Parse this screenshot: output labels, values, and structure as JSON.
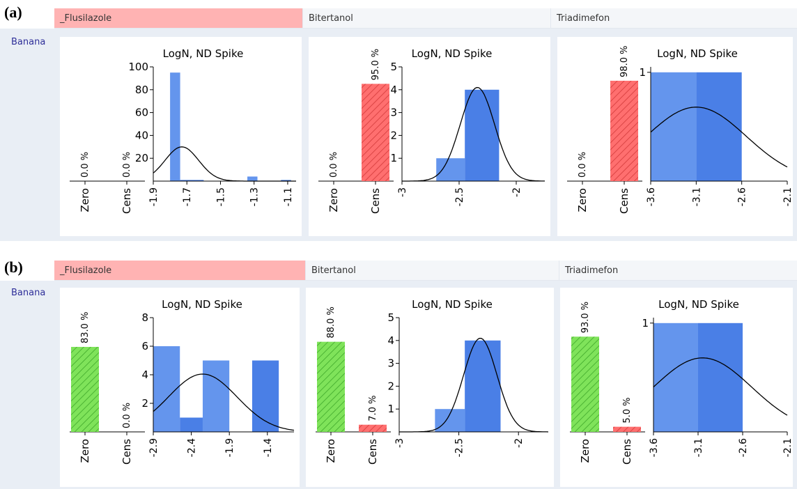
{
  "panels": [
    {
      "label": "(a)",
      "compounds": [
        {
          "name": "_Flusilazole",
          "highlight": true
        },
        {
          "name": "Bitertanol",
          "highlight": false
        },
        {
          "name": "Triadimefon",
          "highlight": false
        }
      ],
      "row_label": "Banana"
    },
    {
      "label": "(b)",
      "compounds": [
        {
          "name": "_Flusilazole",
          "highlight": true
        },
        {
          "name": "Bitertanol",
          "highlight": false
        },
        {
          "name": "Triadimefon",
          "highlight": false
        }
      ],
      "row_label": "Banana"
    }
  ],
  "colors": {
    "zero": "#7fe35a",
    "cens": "#ff6f6f",
    "bar_light": "#6495ed",
    "bar_dark": "#4a7fe6",
    "header_highlight": "#ffb3b3",
    "row_label": "#2e2e99"
  },
  "chart_data": [
    {
      "type": "bar",
      "title": "LogN, ND Spike",
      "panel": "(a)",
      "compound": "_Flusilazole",
      "categories": [
        "Zero",
        "Cens"
      ],
      "values": [
        0.0,
        0.0
      ],
      "value_labels": [
        "0.0 %",
        "0.0 %"
      ],
      "histogram": {
        "x_ticks": [
          "-1.9",
          "-1.7",
          "-1.5",
          "-1.3",
          "-1.1"
        ],
        "xlim": [
          -1.9,
          -1.05
        ],
        "y_ticks": [
          "20",
          "40",
          "60",
          "80",
          "100"
        ],
        "ylim": [
          0,
          100
        ],
        "bins": [
          {
            "x0": -1.8,
            "x1": -1.74,
            "y": 95
          },
          {
            "x0": -1.74,
            "x1": -1.6,
            "y": 1
          },
          {
            "x0": -1.34,
            "x1": -1.28,
            "y": 4
          },
          {
            "x0": -1.14,
            "x1": -1.08,
            "y": 1
          }
        ],
        "curve": {
          "mean": -1.73,
          "sd": 0.1,
          "peak": 30
        }
      }
    },
    {
      "type": "bar",
      "title": "LogN, ND Spike",
      "panel": "(a)",
      "compound": "Bitertanol",
      "categories": [
        "Zero",
        "Cens"
      ],
      "values": [
        0.0,
        95.0
      ],
      "value_labels": [
        "0.0 %",
        "95.0 %"
      ],
      "histogram": {
        "x_ticks": [
          "-3",
          "-2.5",
          "-2"
        ],
        "xlim": [
          -3,
          -1.75
        ],
        "y_ticks": [
          "1",
          "2",
          "3",
          "4",
          "5"
        ],
        "ylim": [
          0,
          5
        ],
        "bins": [
          {
            "x0": -2.7,
            "x1": -2.45,
            "y": 1
          },
          {
            "x0": -2.45,
            "x1": -2.15,
            "y": 4
          }
        ],
        "curve": {
          "mean": -2.34,
          "sd": 0.15,
          "peak": 4.1
        }
      }
    },
    {
      "type": "bar",
      "title": "LogN, ND Spike",
      "panel": "(a)",
      "compound": "Triadimefon",
      "categories": [
        "Zero",
        "Cens"
      ],
      "values": [
        0.0,
        98.0
      ],
      "value_labels": [
        "0.0 %",
        "98.0 %"
      ],
      "histogram": {
        "x_ticks": [
          "-3.6",
          "-3.1",
          "-2.6",
          "-2.1"
        ],
        "xlim": [
          -3.6,
          -2.1
        ],
        "y_ticks": [
          "1"
        ],
        "ylim": [
          0,
          1.05
        ],
        "bins": [
          {
            "x0": -3.6,
            "x1": -3.1,
            "y": 1
          },
          {
            "x0": -3.1,
            "x1": -2.6,
            "y": 1
          }
        ],
        "curve": {
          "mean": -3.1,
          "sd": 0.55,
          "peak": 0.68
        }
      }
    },
    {
      "type": "bar",
      "title": "LogN, ND Spike",
      "panel": "(b)",
      "compound": "_Flusilazole",
      "categories": [
        "Zero",
        "Cens"
      ],
      "values": [
        83.0,
        0.0
      ],
      "value_labels": [
        "83.0 %",
        "0.0 %"
      ],
      "histogram": {
        "x_ticks": [
          "-2.9",
          "-2.4",
          "-1.9",
          "-1.4"
        ],
        "xlim": [
          -2.9,
          -1.05
        ],
        "y_ticks": [
          "2",
          "4",
          "6",
          "8"
        ],
        "ylim": [
          0,
          8
        ],
        "bins": [
          {
            "x0": -2.9,
            "x1": -2.55,
            "y": 6
          },
          {
            "x0": -2.55,
            "x1": -2.25,
            "y": 1
          },
          {
            "x0": -2.25,
            "x1": -1.9,
            "y": 5
          },
          {
            "x0": -1.6,
            "x1": -1.25,
            "y": 5
          }
        ],
        "curve": {
          "mean": -2.25,
          "sd": 0.45,
          "peak": 4.05
        }
      }
    },
    {
      "type": "bar",
      "title": "LogN, ND Spike",
      "panel": "(b)",
      "compound": "Bitertanol",
      "categories": [
        "Zero",
        "Cens"
      ],
      "values": [
        88.0,
        7.0
      ],
      "value_labels": [
        "88.0 %",
        "7.0 %"
      ],
      "histogram": {
        "x_ticks": [
          "-3",
          "-2.5",
          "-2"
        ],
        "xlim": [
          -3,
          -1.75
        ],
        "y_ticks": [
          "1",
          "2",
          "3",
          "4",
          "5"
        ],
        "ylim": [
          0,
          5
        ],
        "bins": [
          {
            "x0": -2.7,
            "x1": -2.45,
            "y": 1
          },
          {
            "x0": -2.45,
            "x1": -2.15,
            "y": 4
          }
        ],
        "curve": {
          "mean": -2.32,
          "sd": 0.14,
          "peak": 4.1
        }
      }
    },
    {
      "type": "bar",
      "title": "LogN, ND Spike",
      "panel": "(b)",
      "compound": "Triadimefon",
      "categories": [
        "Zero",
        "Cens"
      ],
      "values": [
        93.0,
        5.0
      ],
      "value_labels": [
        "93.0 %",
        "5.0 %"
      ],
      "histogram": {
        "x_ticks": [
          "-3.6",
          "-3.1",
          "-2.6",
          "-2.1"
        ],
        "xlim": [
          -3.6,
          -2.1
        ],
        "y_ticks": [
          "1"
        ],
        "ylim": [
          0,
          1.05
        ],
        "bins": [
          {
            "x0": -3.6,
            "x1": -3.1,
            "y": 1
          },
          {
            "x0": -3.1,
            "x1": -2.6,
            "y": 1
          }
        ],
        "curve": {
          "mean": -3.05,
          "sd": 0.55,
          "peak": 0.68
        }
      }
    }
  ]
}
